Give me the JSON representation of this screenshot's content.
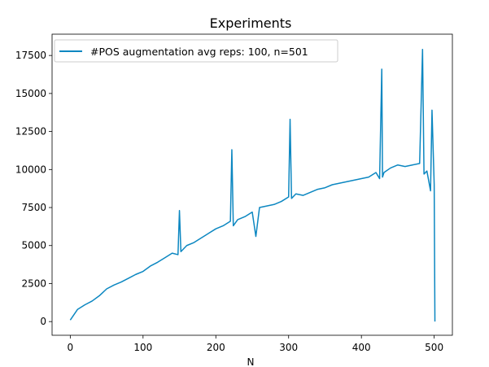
{
  "chart_data": {
    "type": "line",
    "title": "Experiments",
    "xlabel": "N",
    "ylabel": "",
    "xlim": [
      -25,
      525
    ],
    "ylim": [
      -900,
      18900
    ],
    "xticks": [
      0,
      100,
      200,
      300,
      400,
      500
    ],
    "yticks": [
      0,
      2500,
      5000,
      7500,
      10000,
      12500,
      15000,
      17500
    ],
    "xtick_labels": [
      "0",
      "100",
      "200",
      "300",
      "400",
      "500"
    ],
    "ytick_labels": [
      "0",
      "2500",
      "5000",
      "7500",
      "10000",
      "12500",
      "15000",
      "17500"
    ],
    "grid": false,
    "legend_position": "top-left",
    "series": [
      {
        "name": "#POS augmentation avg reps: 100, n=501",
        "color": "#0c87c1",
        "x": [
          0,
          10,
          20,
          30,
          40,
          50,
          60,
          70,
          80,
          90,
          100,
          110,
          120,
          130,
          140,
          148,
          150,
          152,
          160,
          170,
          180,
          190,
          200,
          210,
          220,
          222,
          224,
          230,
          240,
          250,
          255,
          260,
          270,
          280,
          290,
          300,
          302,
          304,
          310,
          320,
          330,
          340,
          350,
          360,
          370,
          380,
          390,
          400,
          410,
          420,
          425,
          428,
          429,
          431,
          440,
          450,
          460,
          470,
          480,
          484,
          486,
          490,
          495,
          497,
          500
        ],
        "values": [
          100,
          800,
          1100,
          1350,
          1700,
          2150,
          2400,
          2600,
          2850,
          3100,
          3300,
          3650,
          3900,
          4200,
          4500,
          4400,
          7300,
          4600,
          5000,
          5200,
          5500,
          5800,
          6100,
          6300,
          6600,
          11300,
          6300,
          6700,
          6900,
          7200,
          5600,
          7500,
          7600,
          7700,
          7900,
          8200,
          13300,
          8100,
          8400,
          8300,
          8500,
          8700,
          8800,
          9000,
          9100,
          9200,
          9300,
          9400,
          9500,
          9800,
          9400,
          16600,
          9500,
          9800,
          10100,
          10300,
          10200,
          10300,
          10400,
          17900,
          9700,
          9900,
          8600,
          13900,
          9000
        ]
      }
    ],
    "series_final_drop": {
      "x": 501,
      "value": 0
    }
  }
}
